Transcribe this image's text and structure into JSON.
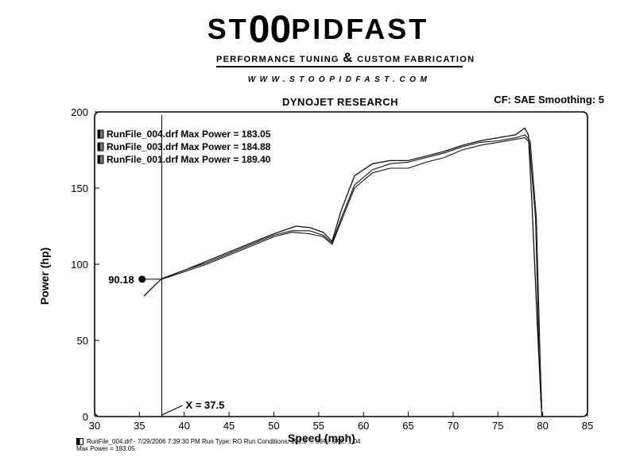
{
  "brand": {
    "name_prefix": "ST",
    "name_oo": "00",
    "name_suffix": "PIDFAST",
    "tagline_left": "PERFORMANCE TUNING",
    "tagline_amp": "&",
    "tagline_right": "CUSTOM FABRICATION",
    "website": "WWW.STOOPIDFAST.COM"
  },
  "header": {
    "title": "DYNOJET RESEARCH",
    "correction": "CF: SAE  Smoothing: 5"
  },
  "footer": {
    "line1": "RunFile_004.drf - 7/29/2006 7:39:30 PM  Run Type: RO  Run Conditions: 101.8 ... 36%, SAE: 1.04",
    "line2": "Max Power = 183.05"
  },
  "chart_data": {
    "type": "line",
    "xlabel": "Speed (mph)",
    "ylabel": "Power (hp)",
    "xlim": [
      30,
      85
    ],
    "ylim": [
      0,
      200
    ],
    "xticks": [
      30,
      35,
      40,
      45,
      50,
      55,
      60,
      65,
      70,
      75,
      80,
      85
    ],
    "yticks": [
      0,
      50,
      100,
      150,
      200
    ],
    "grid": false,
    "legend_position": "top-left",
    "cursor": {
      "x": 37.5,
      "label": "X = 37.5",
      "marker_value": 90.18,
      "marker_label": "90.18"
    },
    "series": [
      {
        "name": "RunFile_004.drf Max Power = 183.05",
        "x": [
          37.5,
          40,
          42.5,
          45,
          47.5,
          50,
          52,
          54,
          55.5,
          56.5,
          57.5,
          59,
          61,
          63,
          65,
          67,
          69,
          71,
          73,
          75,
          77,
          78,
          78.5,
          79.2,
          79.6,
          79.8
        ],
        "values": [
          90.18,
          95,
          100,
          106,
          112,
          118,
          121,
          120,
          118,
          113,
          128,
          150,
          160,
          163,
          163,
          167,
          170,
          175,
          178,
          180,
          182,
          183.05,
          180,
          130,
          40,
          10
        ]
      },
      {
        "name": "RunFile_003.drf Max Power = 184.88",
        "x": [
          37.5,
          40,
          42.5,
          45,
          47.5,
          50,
          52,
          54,
          55.5,
          56.5,
          57.5,
          59,
          61,
          63,
          65,
          67,
          69,
          71,
          73,
          75,
          77,
          78,
          78.6,
          79.3,
          79.7,
          79.9
        ],
        "values": [
          90.5,
          96,
          101,
          107,
          113,
          119,
          122,
          122,
          119,
          114,
          130,
          152,
          162,
          166,
          167,
          170,
          173,
          177,
          180,
          181,
          183,
          184.88,
          181,
          130,
          40,
          5
        ]
      },
      {
        "name": "RunFile_001.drf Max Power = 189.40",
        "x": [
          35.5,
          36.5,
          37.5,
          40,
          42.5,
          45,
          47.5,
          50,
          52.5,
          54,
          55.5,
          56.5,
          57.5,
          59,
          61,
          63,
          65,
          67,
          69,
          71,
          73,
          75,
          77,
          78,
          78.4,
          78.8,
          79.4,
          79.9
        ],
        "values": [
          79,
          85,
          90.5,
          96,
          102,
          108,
          114,
          120,
          125,
          124,
          121,
          115,
          135,
          158,
          166,
          168,
          168,
          171,
          174,
          178,
          181,
          183,
          185,
          189.4,
          185,
          140,
          60,
          0
        ]
      }
    ]
  }
}
